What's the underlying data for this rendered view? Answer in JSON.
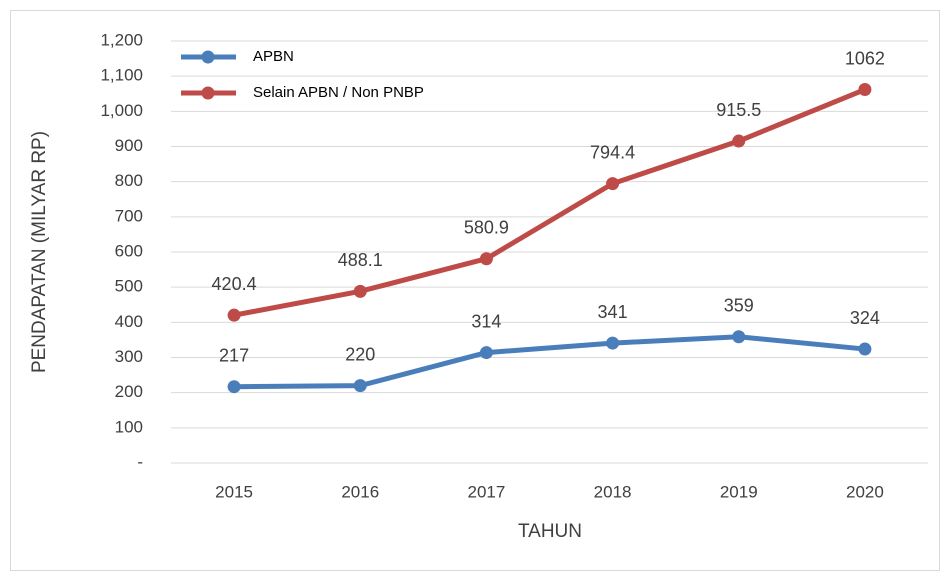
{
  "chart_data": {
    "type": "line",
    "x_label": "TAHUN",
    "y_label": "PENDAPATAN (MILYAR RP)",
    "categories": [
      "2015",
      "2016",
      "2017",
      "2018",
      "2019",
      "2020"
    ],
    "series": [
      {
        "name": "APBN",
        "color": "#4a7ebb",
        "values": [
          217,
          220,
          314,
          341,
          359,
          324
        ]
      },
      {
        "name": "Selain APBN / Non PNBP",
        "color": "#be4b48",
        "values": [
          420.4,
          488.1,
          580.9,
          794.4,
          915.5,
          1062
        ]
      }
    ],
    "ylim": [
      0,
      1200
    ],
    "yticks": [
      {
        "value": 0,
        "label": "-"
      },
      100,
      200,
      300,
      400,
      500,
      600,
      700,
      800,
      900,
      {
        "value": 1000,
        "label": "1,000"
      },
      {
        "value": 1100,
        "label": "1,100"
      },
      {
        "value": 1200,
        "label": "1,200"
      }
    ],
    "grid": true,
    "legend": "upper left"
  }
}
